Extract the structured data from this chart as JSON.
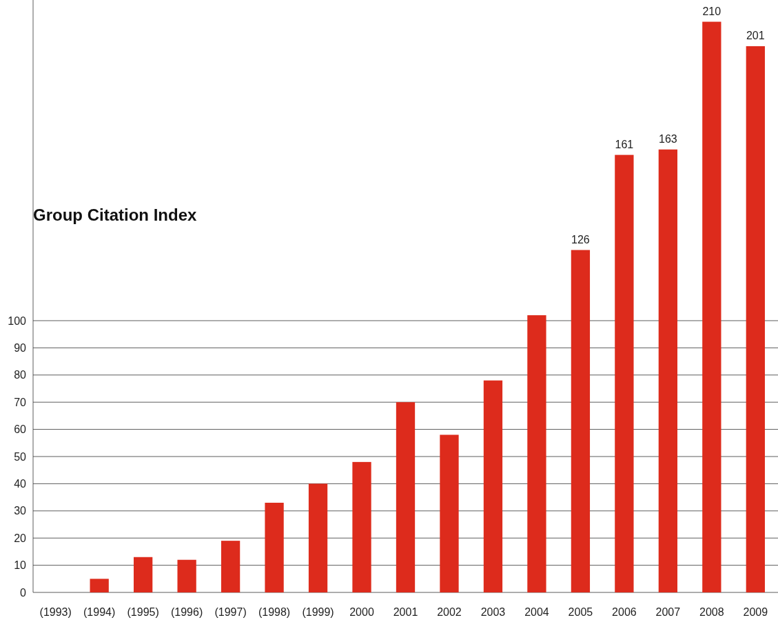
{
  "chart_data": {
    "type": "bar",
    "title": "Group Citation Index",
    "categories": [
      "(1993)",
      "(1994)",
      "(1995)",
      "(1996)",
      "(1997)",
      "(1998)",
      "(1999)",
      "2000",
      "2001",
      "2002",
      "2003",
      "2004",
      "2005",
      "2006",
      "2007",
      "2008",
      "2009"
    ],
    "values": [
      0,
      5,
      13,
      12,
      19,
      33,
      40,
      48,
      70,
      58,
      78,
      102,
      126,
      161,
      163,
      210,
      201
    ],
    "value_labels": [
      null,
      null,
      null,
      null,
      null,
      null,
      null,
      null,
      null,
      null,
      null,
      null,
      "126",
      "161",
      "163",
      "210",
      "201"
    ],
    "color": "#dd2b1c",
    "ylim": [
      0,
      218
    ],
    "yticks": [
      0,
      10,
      20,
      30,
      40,
      50,
      60,
      70,
      80,
      90,
      100
    ],
    "grid": "y"
  }
}
